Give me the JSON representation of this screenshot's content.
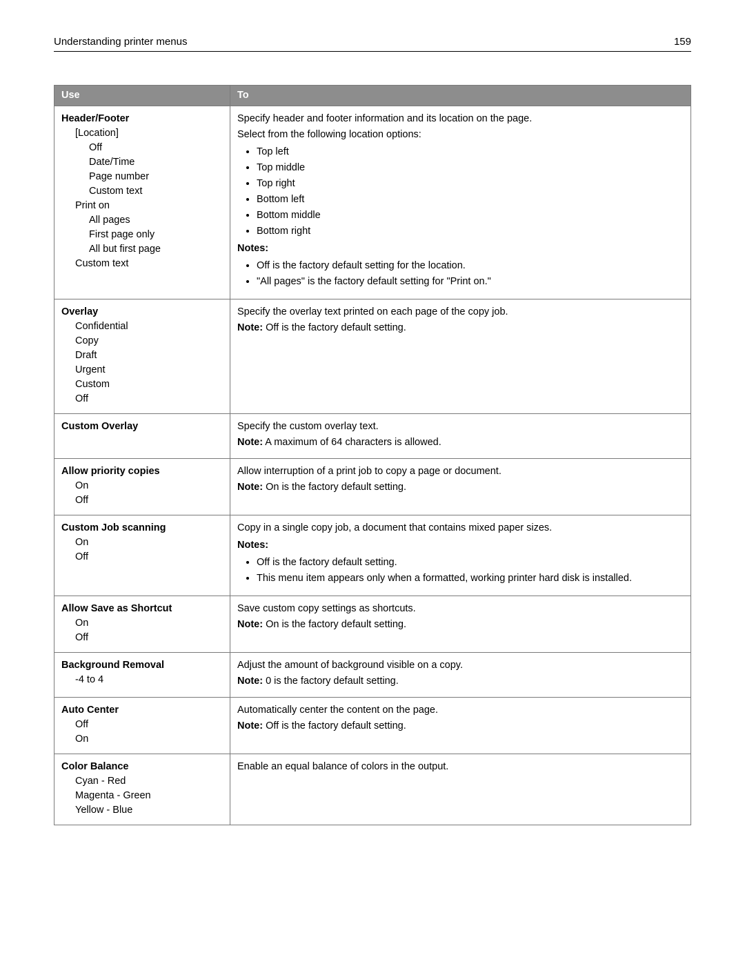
{
  "header": {
    "title": "Understanding printer menus",
    "page_number": "159"
  },
  "table": {
    "col_use": "Use",
    "col_to": "To",
    "rows": [
      {
        "use_title": "Header/Footer",
        "use_items": [
          {
            "t": "[Location]",
            "lvl": 1
          },
          {
            "t": "Off",
            "lvl": 2
          },
          {
            "t": "Date/Time",
            "lvl": 2
          },
          {
            "t": "Page number",
            "lvl": 2
          },
          {
            "t": "Custom text",
            "lvl": 2
          },
          {
            "t": "Print on",
            "lvl": 1
          },
          {
            "t": "All pages",
            "lvl": 2
          },
          {
            "t": "First page only",
            "lvl": 2
          },
          {
            "t": "All but first page",
            "lvl": 2
          },
          {
            "t": "Custom text",
            "lvl": 1
          }
        ],
        "to": {
          "lead": "Specify header and footer information and its location on the page.",
          "lead2": "Select from the following location options:",
          "bullets": [
            "Top left",
            "Top middle",
            "Top right",
            "Bottom left",
            "Bottom middle",
            "Bottom right"
          ],
          "notes_label": "Notes:",
          "notes": [
            "Off is the factory default setting for the location.",
            "\"All pages\" is the factory default setting for \"Print on.\""
          ]
        }
      },
      {
        "use_title": "Overlay",
        "use_items": [
          {
            "t": "Confidential",
            "lvl": 1
          },
          {
            "t": "Copy",
            "lvl": 1
          },
          {
            "t": "Draft",
            "lvl": 1
          },
          {
            "t": "Urgent",
            "lvl": 1
          },
          {
            "t": "Custom",
            "lvl": 1
          },
          {
            "t": "Off",
            "lvl": 1
          }
        ],
        "to": {
          "lead": "Specify the overlay text printed on each page of the copy job.",
          "note_label": "Note:",
          "note": " Off is the factory default setting."
        }
      },
      {
        "use_title": "Custom Overlay",
        "use_items": [],
        "to": {
          "lead": "Specify the custom overlay text.",
          "note_label": "Note:",
          "note": " A maximum of 64 characters is allowed."
        }
      },
      {
        "use_title": "Allow priority copies",
        "use_items": [
          {
            "t": "On",
            "lvl": 1
          },
          {
            "t": "Off",
            "lvl": 1
          }
        ],
        "to": {
          "lead": "Allow interruption of a print job to copy a page or document.",
          "note_label": "Note:",
          "note": " On is the factory default setting."
        }
      },
      {
        "use_title": "Custom Job scanning",
        "use_items": [
          {
            "t": "On",
            "lvl": 1
          },
          {
            "t": "Off",
            "lvl": 1
          }
        ],
        "to": {
          "lead": "Copy in a single copy job, a document that contains mixed paper sizes.",
          "notes_label": "Notes:",
          "notes": [
            "Off is the factory default setting.",
            "This menu item appears only when a formatted, working printer hard disk is installed."
          ]
        }
      },
      {
        "use_title": "Allow Save as Shortcut",
        "use_items": [
          {
            "t": "On",
            "lvl": 1
          },
          {
            "t": "Off",
            "lvl": 1
          }
        ],
        "to": {
          "lead": "Save custom copy settings as shortcuts.",
          "note_label": "Note:",
          "note": " On is the factory default setting."
        }
      },
      {
        "use_title": "Background Removal",
        "use_items": [
          {
            "t": "‑4 to 4",
            "lvl": 1
          }
        ],
        "to": {
          "lead": "Adjust the amount of background visible on a copy.",
          "note_label": "Note:",
          "note": " 0 is the factory default setting."
        }
      },
      {
        "use_title": "Auto Center",
        "use_items": [
          {
            "t": "Off",
            "lvl": 1
          },
          {
            "t": "On",
            "lvl": 1
          }
        ],
        "to": {
          "lead": "Automatically center the content on the page.",
          "note_label": "Note:",
          "note": " Off is the factory default setting."
        }
      },
      {
        "use_title": "Color Balance",
        "use_items": [
          {
            "t": "Cyan ‑ Red",
            "lvl": 1
          },
          {
            "t": "Magenta ‑ Green",
            "lvl": 1
          },
          {
            "t": "Yellow ‑ Blue",
            "lvl": 1
          }
        ],
        "to": {
          "lead": "Enable an equal balance of colors in the output."
        }
      }
    ]
  }
}
